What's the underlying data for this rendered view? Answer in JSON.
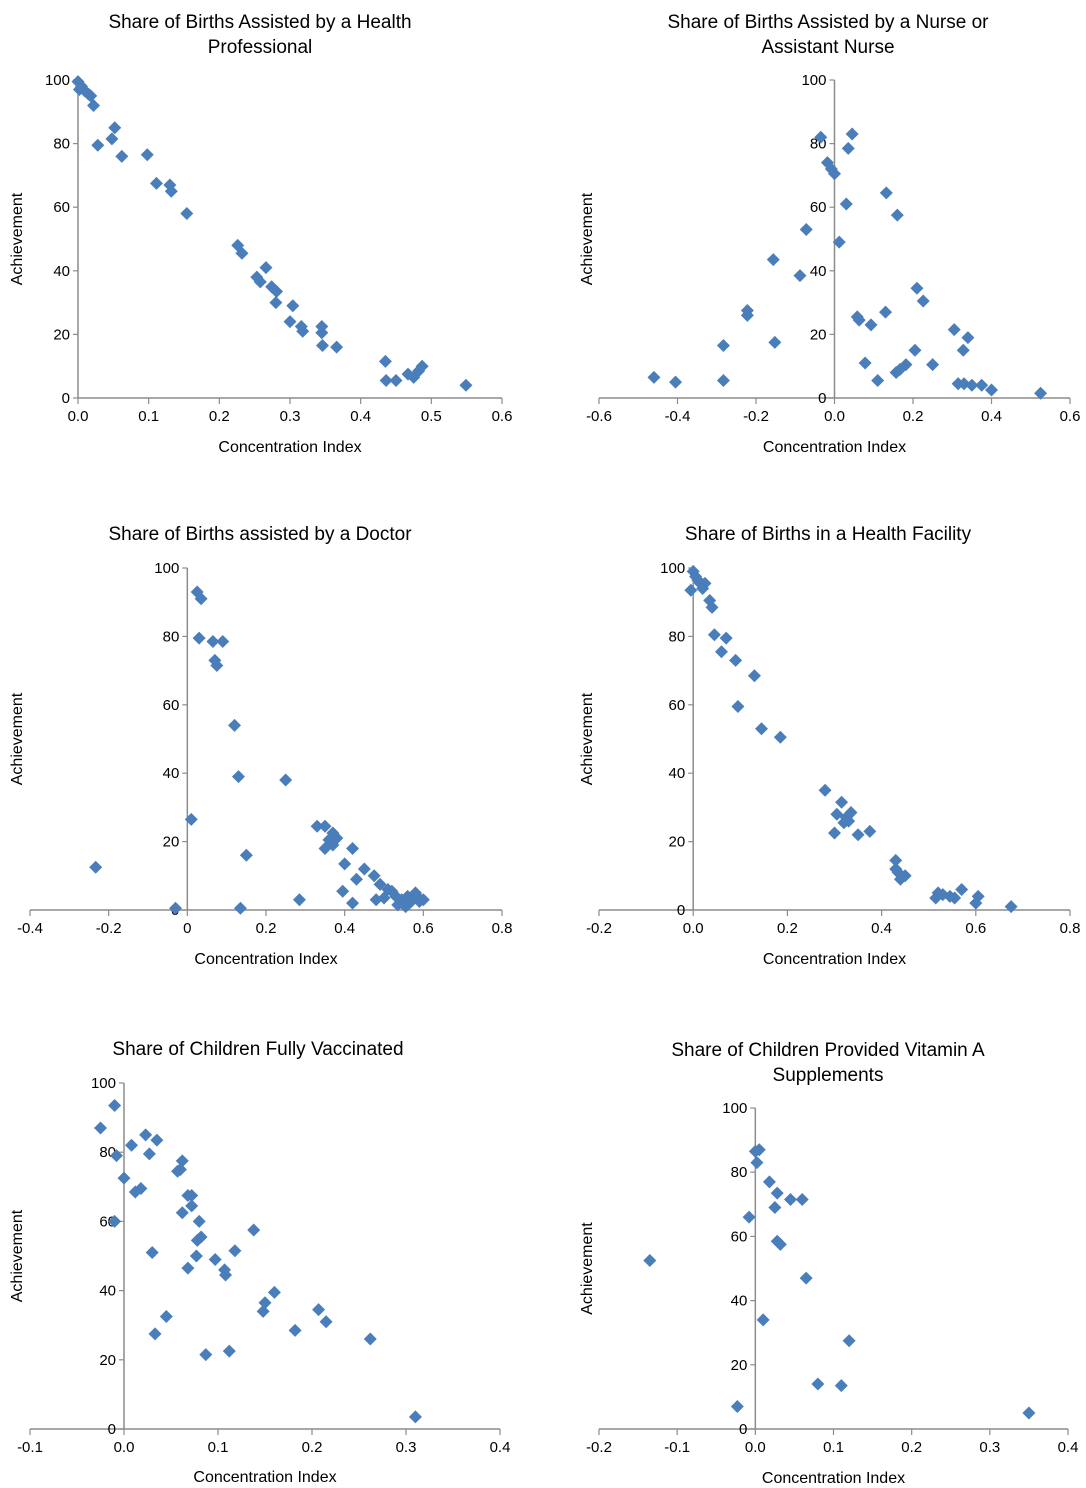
{
  "colors": {
    "marker": "#4a7ebb",
    "axis": "#8c8c8c"
  },
  "chart_data": [
    {
      "type": "scatter",
      "title": [
        "Share of Births Assisted by a Health",
        "Professional"
      ],
      "xlabel": "Concentration  Index",
      "ylabel": "Achievement",
      "xlim": [
        0.0,
        0.6
      ],
      "ylim": [
        0,
        100
      ],
      "xticks": [
        0.0,
        0.1,
        0.2,
        0.3,
        0.4,
        0.5,
        0.6
      ],
      "xtick_labels": [
        "0.0",
        "0.1",
        "0.2",
        "0.3",
        "0.4",
        "0.5",
        "0.6"
      ],
      "yticks": [
        0,
        20,
        40,
        60,
        80,
        100
      ],
      "grid": false,
      "points": [
        [
          0.0,
          99.5
        ],
        [
          0.005,
          98.0
        ],
        [
          0.002,
          97.0
        ],
        [
          0.01,
          96.5
        ],
        [
          0.015,
          95.5
        ],
        [
          0.018,
          95.0
        ],
        [
          0.022,
          92.0
        ],
        [
          0.028,
          79.5
        ],
        [
          0.048,
          81.5
        ],
        [
          0.052,
          85.0
        ],
        [
          0.062,
          76.0
        ],
        [
          0.098,
          76.5
        ],
        [
          0.111,
          67.5
        ],
        [
          0.13,
          67.0
        ],
        [
          0.132,
          65.0
        ],
        [
          0.154,
          58.0
        ],
        [
          0.226,
          48.0
        ],
        [
          0.232,
          45.5
        ],
        [
          0.253,
          38.0
        ],
        [
          0.258,
          36.5
        ],
        [
          0.266,
          41.0
        ],
        [
          0.274,
          35.0
        ],
        [
          0.281,
          33.5
        ],
        [
          0.28,
          30.0
        ],
        [
          0.3,
          24.0
        ],
        [
          0.304,
          29.0
        ],
        [
          0.316,
          22.5
        ],
        [
          0.318,
          21.0
        ],
        [
          0.345,
          22.5
        ],
        [
          0.345,
          20.5
        ],
        [
          0.346,
          16.5
        ],
        [
          0.366,
          16.0
        ],
        [
          0.435,
          11.5
        ],
        [
          0.436,
          5.5
        ],
        [
          0.45,
          5.5
        ],
        [
          0.467,
          7.5
        ],
        [
          0.475,
          6.5
        ],
        [
          0.482,
          8.5
        ],
        [
          0.487,
          10.0
        ],
        [
          0.549,
          4.0
        ]
      ]
    },
    {
      "type": "scatter",
      "title": [
        "Share of Births Assisted by a Nurse or",
        "Assistant Nurse"
      ],
      "xlabel": "Concentration Index",
      "ylabel": "Achievement",
      "xlim": [
        -0.6,
        0.6
      ],
      "ylim": [
        0,
        100
      ],
      "xticks": [
        -0.6,
        -0.4,
        -0.2,
        0.0,
        0.2,
        0.4,
        0.6
      ],
      "xtick_labels": [
        "-0.6",
        "-0.4",
        "-0.2",
        "0.0",
        "0.2",
        "0.4",
        "0.6"
      ],
      "yticks": [
        0,
        20,
        40,
        60,
        80,
        100
      ],
      "grid": false,
      "points": [
        [
          -0.46,
          6.5
        ],
        [
          -0.405,
          5.0
        ],
        [
          -0.283,
          16.5
        ],
        [
          -0.283,
          5.5
        ],
        [
          -0.222,
          27.5
        ],
        [
          -0.222,
          26.0
        ],
        [
          -0.156,
          43.5
        ],
        [
          -0.152,
          17.5
        ],
        [
          -0.088,
          38.5
        ],
        [
          -0.072,
          53.0
        ],
        [
          -0.035,
          82.0
        ],
        [
          -0.018,
          74.0
        ],
        [
          -0.008,
          72.0
        ],
        [
          0.0,
          70.5
        ],
        [
          0.012,
          49.0
        ],
        [
          0.03,
          61.0
        ],
        [
          0.035,
          78.5
        ],
        [
          0.045,
          83.0
        ],
        [
          0.058,
          25.5
        ],
        [
          0.063,
          24.5
        ],
        [
          0.078,
          11.0
        ],
        [
          0.093,
          23.0
        ],
        [
          0.11,
          5.5
        ],
        [
          0.13,
          27.0
        ],
        [
          0.132,
          64.5
        ],
        [
          0.16,
          57.5
        ],
        [
          0.157,
          8.0
        ],
        [
          0.167,
          9.0
        ],
        [
          0.182,
          10.5
        ],
        [
          0.205,
          15.0
        ],
        [
          0.21,
          34.5
        ],
        [
          0.226,
          30.5
        ],
        [
          0.25,
          10.5
        ],
        [
          0.305,
          21.5
        ],
        [
          0.315,
          4.5
        ],
        [
          0.33,
          4.5
        ],
        [
          0.328,
          15.0
        ],
        [
          0.34,
          19.0
        ],
        [
          0.35,
          4.0
        ],
        [
          0.375,
          4.0
        ],
        [
          0.4,
          2.5
        ],
        [
          0.525,
          1.5
        ]
      ]
    },
    {
      "type": "scatter",
      "title": [
        "Share of Births assisted by a Doctor"
      ],
      "xlabel": "Concentration Index",
      "ylabel": "Achievement",
      "xlim": [
        -0.4,
        0.8
      ],
      "ylim": [
        0,
        100
      ],
      "xticks": [
        -0.4,
        -0.2,
        0.0,
        0.2,
        0.4,
        0.6,
        0.8
      ],
      "xtick_labels": [
        "-0.4",
        "-0.2",
        "0",
        "0.2",
        "0.4",
        "0.6",
        "0.8"
      ],
      "yticks": [
        0,
        20,
        40,
        60,
        80,
        100
      ],
      "grid": false,
      "points": [
        [
          -0.233,
          12.5
        ],
        [
          -0.03,
          0.5
        ],
        [
          0.01,
          26.5
        ],
        [
          0.025,
          93.0
        ],
        [
          0.035,
          91.0
        ],
        [
          0.03,
          79.5
        ],
        [
          0.065,
          78.5
        ],
        [
          0.07,
          73.0
        ],
        [
          0.075,
          71.5
        ],
        [
          0.09,
          78.5
        ],
        [
          0.12,
          54.0
        ],
        [
          0.13,
          39.0
        ],
        [
          0.135,
          0.5
        ],
        [
          0.15,
          16.0
        ],
        [
          0.25,
          38.0
        ],
        [
          0.285,
          3.0
        ],
        [
          0.33,
          24.5
        ],
        [
          0.35,
          24.5
        ],
        [
          0.36,
          20.5
        ],
        [
          0.35,
          18.0
        ],
        [
          0.37,
          19.0
        ],
        [
          0.37,
          22.5
        ],
        [
          0.38,
          21.0
        ],
        [
          0.395,
          5.5
        ],
        [
          0.4,
          13.5
        ],
        [
          0.42,
          18.0
        ],
        [
          0.42,
          2.0
        ],
        [
          0.43,
          9.0
        ],
        [
          0.45,
          12.0
        ],
        [
          0.475,
          10.0
        ],
        [
          0.48,
          3.0
        ],
        [
          0.49,
          7.5
        ],
        [
          0.5,
          3.5
        ],
        [
          0.51,
          6.0
        ],
        [
          0.52,
          5.5
        ],
        [
          0.53,
          4.0
        ],
        [
          0.535,
          1.5
        ],
        [
          0.545,
          3.0
        ],
        [
          0.555,
          1.0
        ],
        [
          0.56,
          4.0
        ],
        [
          0.565,
          2.0
        ],
        [
          0.57,
          3.5
        ],
        [
          0.58,
          5.0
        ],
        [
          0.585,
          4.0
        ],
        [
          0.59,
          2.5
        ],
        [
          0.6,
          3.0
        ]
      ]
    },
    {
      "type": "scatter",
      "title": [
        "Share of Births in a Health Facility"
      ],
      "xlabel": "Concentration Index",
      "ylabel": "Achievement",
      "xlim": [
        -0.2,
        0.8
      ],
      "ylim": [
        0,
        100
      ],
      "xticks": [
        -0.2,
        0.0,
        0.2,
        0.4,
        0.6,
        0.8
      ],
      "xtick_labels": [
        "-0.2",
        "0.0",
        "0.2",
        "0.4",
        "0.6",
        "0.8"
      ],
      "yticks": [
        0,
        20,
        40,
        60,
        80,
        100
      ],
      "grid": false,
      "points": [
        [
          -0.005,
          93.5
        ],
        [
          0.0,
          99.0
        ],
        [
          0.005,
          97.5
        ],
        [
          0.01,
          96.5
        ],
        [
          0.015,
          95.5
        ],
        [
          0.02,
          94.0
        ],
        [
          0.025,
          95.5
        ],
        [
          0.035,
          90.5
        ],
        [
          0.04,
          88.5
        ],
        [
          0.045,
          80.5
        ],
        [
          0.06,
          75.5
        ],
        [
          0.07,
          79.5
        ],
        [
          0.09,
          73.0
        ],
        [
          0.095,
          59.5
        ],
        [
          0.13,
          68.5
        ],
        [
          0.145,
          53.0
        ],
        [
          0.185,
          50.5
        ],
        [
          0.28,
          35.0
        ],
        [
          0.3,
          22.5
        ],
        [
          0.305,
          28.0
        ],
        [
          0.315,
          31.5
        ],
        [
          0.32,
          25.5
        ],
        [
          0.325,
          27.0
        ],
        [
          0.33,
          26.0
        ],
        [
          0.335,
          28.5
        ],
        [
          0.35,
          22.0
        ],
        [
          0.375,
          23.0
        ],
        [
          0.43,
          14.5
        ],
        [
          0.43,
          12.0
        ],
        [
          0.435,
          11.0
        ],
        [
          0.44,
          9.0
        ],
        [
          0.45,
          10.0
        ],
        [
          0.515,
          3.5
        ],
        [
          0.52,
          5.0
        ],
        [
          0.53,
          4.5
        ],
        [
          0.545,
          4.0
        ],
        [
          0.555,
          3.5
        ],
        [
          0.57,
          6.0
        ],
        [
          0.6,
          2.0
        ],
        [
          0.605,
          4.0
        ],
        [
          0.675,
          1.0
        ]
      ]
    },
    {
      "type": "scatter",
      "title": [
        "Share of Children Fully Vaccinated"
      ],
      "xlabel": "Concentration Index",
      "ylabel": "Achievement",
      "xlim": [
        -0.1,
        0.4
      ],
      "ylim": [
        0,
        100
      ],
      "xticks": [
        -0.1,
        0.0,
        0.1,
        0.2,
        0.3,
        0.4
      ],
      "xtick_labels": [
        "-0.1",
        "0.0",
        "0.1",
        "0.2",
        "0.3",
        "0.4"
      ],
      "yticks": [
        0,
        20,
        40,
        60,
        80,
        100
      ],
      "grid": false,
      "points": [
        [
          -0.025,
          87.0
        ],
        [
          -0.01,
          93.5
        ],
        [
          -0.01,
          60.0
        ],
        [
          -0.008,
          79.0
        ],
        [
          0.0,
          72.5
        ],
        [
          0.008,
          82.0
        ],
        [
          0.012,
          68.5
        ],
        [
          0.018,
          69.5
        ],
        [
          0.023,
          85.0
        ],
        [
          0.027,
          79.5
        ],
        [
          0.03,
          51.0
        ],
        [
          0.033,
          27.5
        ],
        [
          0.035,
          83.5
        ],
        [
          0.045,
          32.5
        ],
        [
          0.057,
          74.5
        ],
        [
          0.06,
          75.0
        ],
        [
          0.062,
          77.5
        ],
        [
          0.062,
          62.5
        ],
        [
          0.068,
          46.5
        ],
        [
          0.068,
          67.5
        ],
        [
          0.072,
          67.5
        ],
        [
          0.072,
          64.5
        ],
        [
          0.077,
          50.0
        ],
        [
          0.078,
          54.5
        ],
        [
          0.08,
          60.0
        ],
        [
          0.082,
          55.5
        ],
        [
          0.087,
          21.5
        ],
        [
          0.097,
          49.0
        ],
        [
          0.107,
          46.0
        ],
        [
          0.108,
          44.5
        ],
        [
          0.112,
          22.5
        ],
        [
          0.118,
          51.5
        ],
        [
          0.138,
          57.5
        ],
        [
          0.148,
          34.0
        ],
        [
          0.15,
          36.5
        ],
        [
          0.16,
          39.5
        ],
        [
          0.182,
          28.5
        ],
        [
          0.207,
          34.5
        ],
        [
          0.215,
          31.0
        ],
        [
          0.262,
          26.0
        ],
        [
          0.31,
          3.5
        ]
      ]
    },
    {
      "type": "scatter",
      "title": [
        "Share of Children Provided Vitamin A",
        "Supplements"
      ],
      "xlabel": "Concentration Index",
      "ylabel": "Achievement",
      "xlim": [
        -0.2,
        0.4
      ],
      "ylim": [
        0,
        100
      ],
      "xticks": [
        -0.2,
        -0.1,
        0.0,
        0.1,
        0.2,
        0.3,
        0.4
      ],
      "xtick_labels": [
        "-0.2",
        "-0.1",
        "0.0",
        "0.1",
        "0.2",
        "0.3",
        "0.4"
      ],
      "yticks": [
        0,
        20,
        40,
        60,
        80,
        100
      ],
      "grid": false,
      "points": [
        [
          -0.135,
          52.5
        ],
        [
          -0.023,
          7.0
        ],
        [
          -0.008,
          66.0
        ],
        [
          0.0,
          86.5
        ],
        [
          0.002,
          83.0
        ],
        [
          0.005,
          87.0
        ],
        [
          0.01,
          34.0
        ],
        [
          0.018,
          77.0
        ],
        [
          0.025,
          69.0
        ],
        [
          0.028,
          73.5
        ],
        [
          0.028,
          58.5
        ],
        [
          0.032,
          57.5
        ],
        [
          0.045,
          71.5
        ],
        [
          0.06,
          71.5
        ],
        [
          0.065,
          47.0
        ],
        [
          0.08,
          14.0
        ],
        [
          0.11,
          13.5
        ],
        [
          0.12,
          27.5
        ],
        [
          0.35,
          5.0
        ]
      ]
    }
  ]
}
